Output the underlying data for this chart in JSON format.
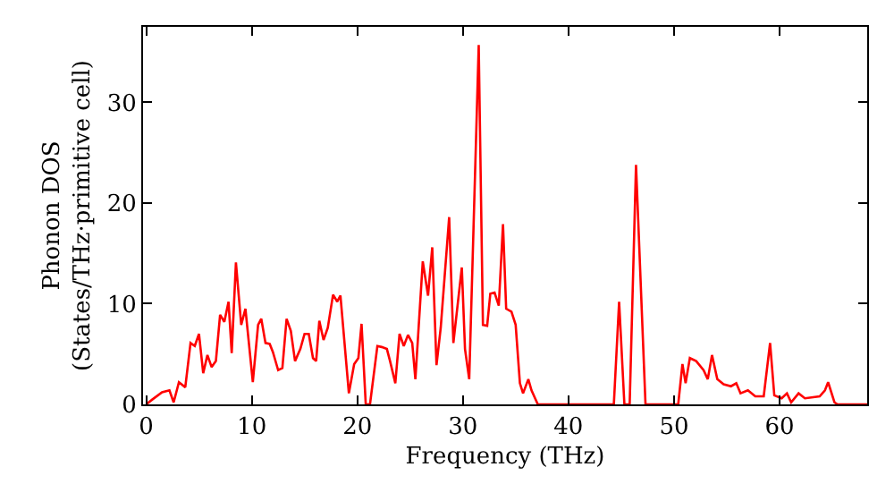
{
  "chart_data": {
    "type": "line",
    "xlabel": "Frequency (THz)",
    "ylabel": "Phonon DOS\n(States/THz·primitive cell)",
    "xlim": [
      -0.3,
      68.3
    ],
    "ylim": [
      0,
      37.5
    ],
    "xticks": [
      0,
      10,
      20,
      30,
      40,
      50,
      60
    ],
    "yticks": [
      0,
      10,
      20,
      30
    ],
    "grid": false,
    "legend": false,
    "marker": "none",
    "line_style": "solid",
    "series": [
      {
        "color": "#ff0000",
        "x": [
          0,
          0.6,
          1.5,
          2.2,
          2.6,
          3.1,
          3.7,
          4.2,
          4.6,
          5.0,
          5.4,
          5.8,
          6.2,
          6.6,
          7.0,
          7.4,
          7.8,
          8.1,
          8.5,
          9.0,
          9.4,
          10.1,
          10.6,
          10.9,
          11.3,
          11.7,
          12.0,
          12.5,
          12.9,
          13.3,
          13.7,
          14.1,
          14.6,
          15.0,
          15.4,
          15.8,
          16.1,
          16.4,
          16.8,
          17.2,
          17.7,
          18.1,
          18.4,
          19.2,
          19.7,
          20.1,
          20.4,
          20.8,
          21.2,
          21.9,
          22.3,
          22.8,
          23.1,
          23.6,
          24.0,
          24.4,
          24.8,
          25.2,
          25.5,
          26.2,
          26.7,
          27.1,
          27.5,
          27.9,
          28.7,
          29.1,
          29.9,
          30.2,
          30.6,
          31.5,
          31.9,
          32.3,
          32.6,
          33.0,
          33.4,
          33.8,
          34.1,
          34.6,
          35.0,
          35.4,
          35.7,
          36.2,
          36.5,
          37.1,
          44.3,
          44.8,
          45.3,
          45.8,
          46.4,
          47.3,
          50.4,
          50.8,
          51.1,
          51.5,
          52.1,
          52.8,
          53.2,
          53.6,
          54.1,
          54.7,
          55.4,
          55.9,
          56.3,
          57.0,
          57.7,
          58.5,
          59.1,
          59.5,
          60.2,
          60.7,
          61.1,
          61.8,
          62.4,
          63.8,
          64.3,
          64.6,
          65.2,
          65.5,
          68.3
        ],
        "values": [
          0,
          0.5,
          1.2,
          1.4,
          0.2,
          2.2,
          1.7,
          6.1,
          5.8,
          7.0,
          3.1,
          4.9,
          3.7,
          4.3,
          8.9,
          8.2,
          10.2,
          5.1,
          14.1,
          7.9,
          9.5,
          2.2,
          7.9,
          8.5,
          6.1,
          6.0,
          5.2,
          3.4,
          3.6,
          8.5,
          7.3,
          4.3,
          5.5,
          7.0,
          7.0,
          4.6,
          4.3,
          8.3,
          6.4,
          7.6,
          10.9,
          10.2,
          10.8,
          1.1,
          4.0,
          4.6,
          8.0,
          0,
          0,
          5.8,
          5.7,
          5.5,
          4.3,
          2.1,
          7.0,
          5.8,
          6.9,
          6.1,
          2.5,
          14.2,
          10.8,
          15.6,
          3.9,
          7.6,
          18.6,
          6.1,
          13.6,
          5.5,
          2.5,
          35.7,
          7.9,
          7.8,
          11.0,
          11.1,
          9.8,
          17.9,
          9.5,
          9.2,
          7.9,
          2.1,
          1.1,
          2.5,
          1.4,
          0,
          0,
          10.2,
          0,
          0,
          23.8,
          0,
          0,
          4.0,
          2.1,
          4.6,
          4.3,
          3.4,
          2.5,
          4.9,
          2.5,
          2.0,
          1.8,
          2.1,
          1.1,
          1.4,
          0.8,
          0.8,
          6.1,
          0.9,
          0.6,
          1.1,
          0.2,
          1.1,
          0.6,
          0.8,
          1.4,
          2.2,
          0.2,
          0,
          0
        ]
      }
    ]
  }
}
